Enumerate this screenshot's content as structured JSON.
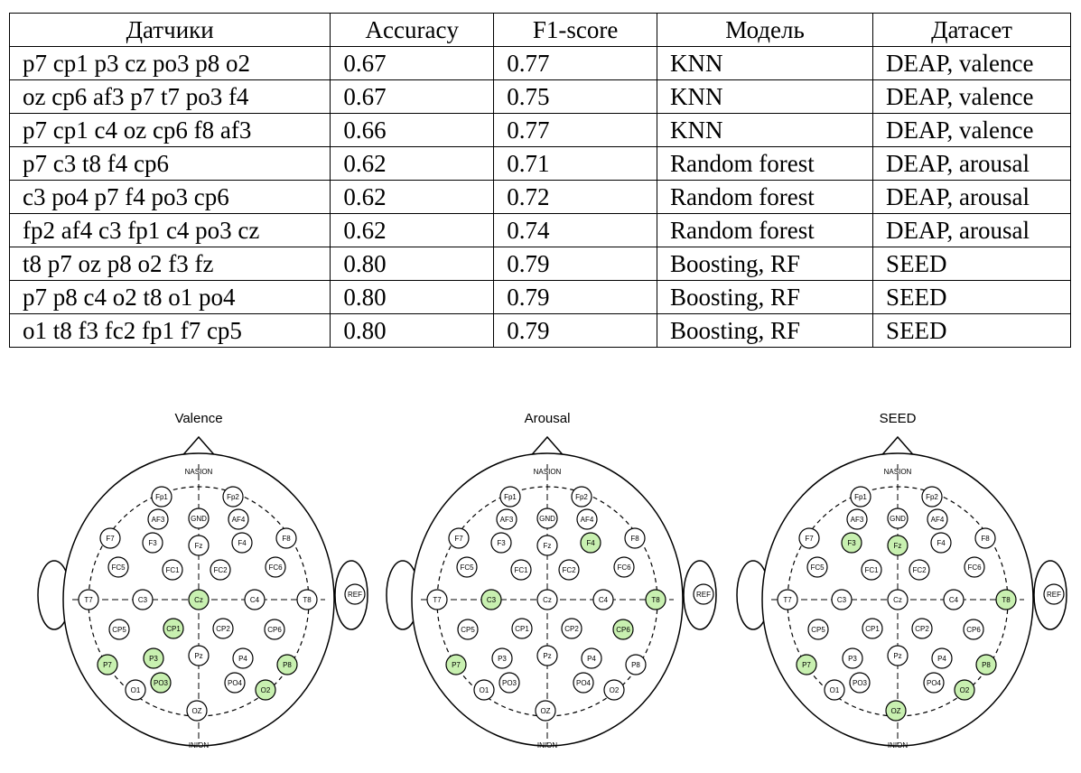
{
  "table": {
    "headers": [
      "Датчики",
      "Accuracy",
      "F1-score",
      "Модель",
      "Датасет"
    ],
    "rows": [
      [
        "p7 cp1 p3 cz po3 p8 o2",
        "0.67",
        "0.77",
        "KNN",
        "DEAP, valence"
      ],
      [
        "oz cp6 af3 p7 t7 po3 f4",
        "0.67",
        "0.75",
        "KNN",
        "DEAP, valence"
      ],
      [
        "p7 cp1 c4 oz cp6 f8 af3",
        "0.66",
        "0.77",
        "KNN",
        "DEAP, valence"
      ],
      [
        "p7 c3 t8 f4 cp6",
        "0.62",
        "0.71",
        "Random forest",
        "DEAP, arousal"
      ],
      [
        "c3 po4 p7 f4 po3 cp6",
        "0.62",
        "0.72",
        "Random forest",
        "DEAP, arousal"
      ],
      [
        "fp2 af4 c3 fp1 c4 po3 cz",
        "0.62",
        "0.74",
        "Random forest",
        "DEAP, arousal"
      ],
      [
        "t8 p7 oz p8 o2 f3 fz",
        "0.80",
        "0.79",
        "Boosting, RF",
        "SEED"
      ],
      [
        "p7 p8 c4 o2 t8 o1 po4",
        "0.80",
        "0.79",
        "Boosting, RF",
        "SEED"
      ],
      [
        "o1 t8 f3 fc2 fp1 f7 cp5",
        "0.80",
        "0.79",
        "Boosting, RF",
        "SEED"
      ]
    ]
  },
  "landmarks": {
    "nasion": "NASION",
    "inion": "INION",
    "ref": "REF"
  },
  "electrode_labels": [
    "Fp1",
    "Fp2",
    "AF3",
    "GND",
    "AF4",
    "F7",
    "F3",
    "Fz",
    "F4",
    "F8",
    "FC5",
    "FC1",
    "FC2",
    "FC6",
    "T7",
    "C3",
    "Cz",
    "C4",
    "T8",
    "CP5",
    "CP1",
    "CP2",
    "CP6",
    "P7",
    "P3",
    "Pz",
    "P4",
    "P8",
    "PO3",
    "PO4",
    "O1",
    "O2",
    "OZ"
  ],
  "highlight_color": "#c8f0b0",
  "maps": [
    {
      "title": "Valence",
      "highlighted": [
        "Cz",
        "CP1",
        "P7",
        "P3",
        "PO3",
        "P8",
        "O2"
      ]
    },
    {
      "title": "Arousal",
      "highlighted": [
        "F4",
        "C3",
        "T8",
        "CP6",
        "P7"
      ]
    },
    {
      "title": "SEED",
      "highlighted": [
        "F3",
        "Fz",
        "T8",
        "P7",
        "P8",
        "O2",
        "OZ"
      ]
    }
  ]
}
